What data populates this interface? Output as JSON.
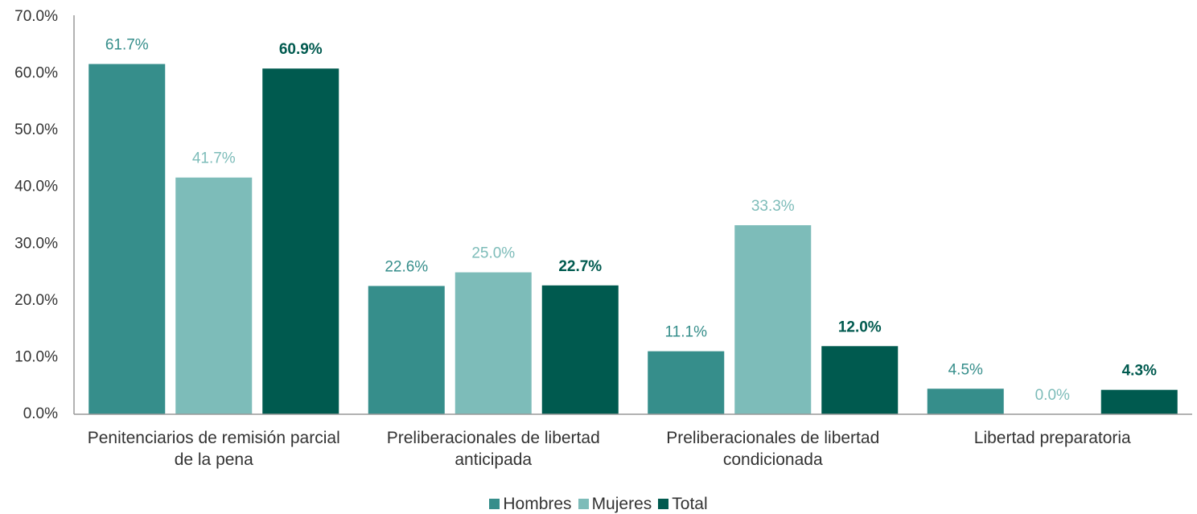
{
  "chart_data": {
    "type": "bar",
    "categories": [
      "Penitenciarios de remisión parcial de la pena",
      "Preliberacionales de libertad anticipada",
      "Preliberacionales de libertad condicionada",
      "Libertad preparatoria"
    ],
    "series": [
      {
        "name": "Hombres",
        "color": "#368e8b",
        "values": [
          61.7,
          22.6,
          11.1,
          4.5
        ],
        "value_labels": [
          "61.7%",
          "22.6%",
          "11.1%",
          "4.5%"
        ]
      },
      {
        "name": "Mujeres",
        "color": "#7dbcb9",
        "values": [
          41.7,
          25.0,
          33.3,
          0.0
        ],
        "value_labels": [
          "41.7%",
          "25.0%",
          "33.3%",
          "0.0%"
        ]
      },
      {
        "name": "Total",
        "color": "#005a4f",
        "values": [
          60.9,
          22.7,
          12.0,
          4.3
        ],
        "value_labels": [
          "60.9%",
          "22.7%",
          "12.0%",
          "4.3%"
        ]
      }
    ],
    "ylim": [
      0,
      70
    ],
    "yticks": [
      {
        "value": 0,
        "label": "0.0%"
      },
      {
        "value": 10,
        "label": "10.0%"
      },
      {
        "value": 20,
        "label": "20.0%"
      },
      {
        "value": 30,
        "label": "30.0%"
      },
      {
        "value": 40,
        "label": "40.0%"
      },
      {
        "value": 50,
        "label": "50.0%"
      },
      {
        "value": 60,
        "label": "60.0%"
      },
      {
        "value": 70,
        "label": "70.0%"
      }
    ],
    "grid": false,
    "legend": "bottom"
  }
}
